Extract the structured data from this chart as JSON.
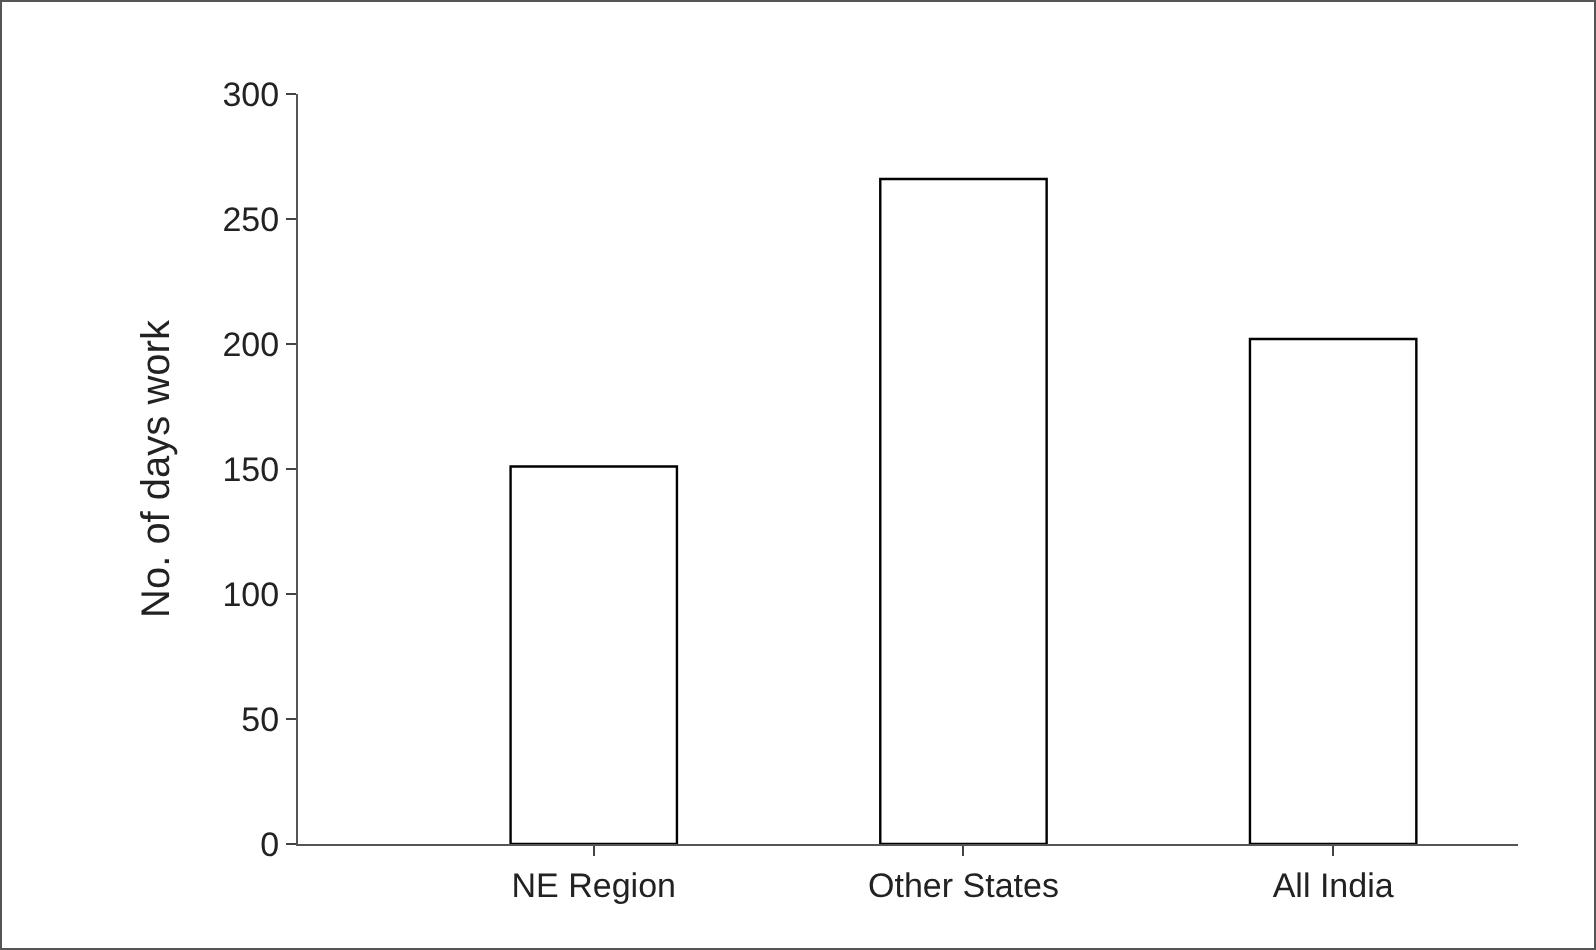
{
  "chart_data": {
    "type": "bar",
    "ylabel": "No. of days work",
    "categories": [
      "NE Region",
      "Other States",
      "All India"
    ],
    "values": [
      151,
      266,
      202
    ],
    "color": "#ffffff",
    "ylim": [
      0,
      300
    ],
    "yticks": [
      0,
      50,
      100,
      150,
      200,
      250,
      300
    ],
    "grid": false
  }
}
